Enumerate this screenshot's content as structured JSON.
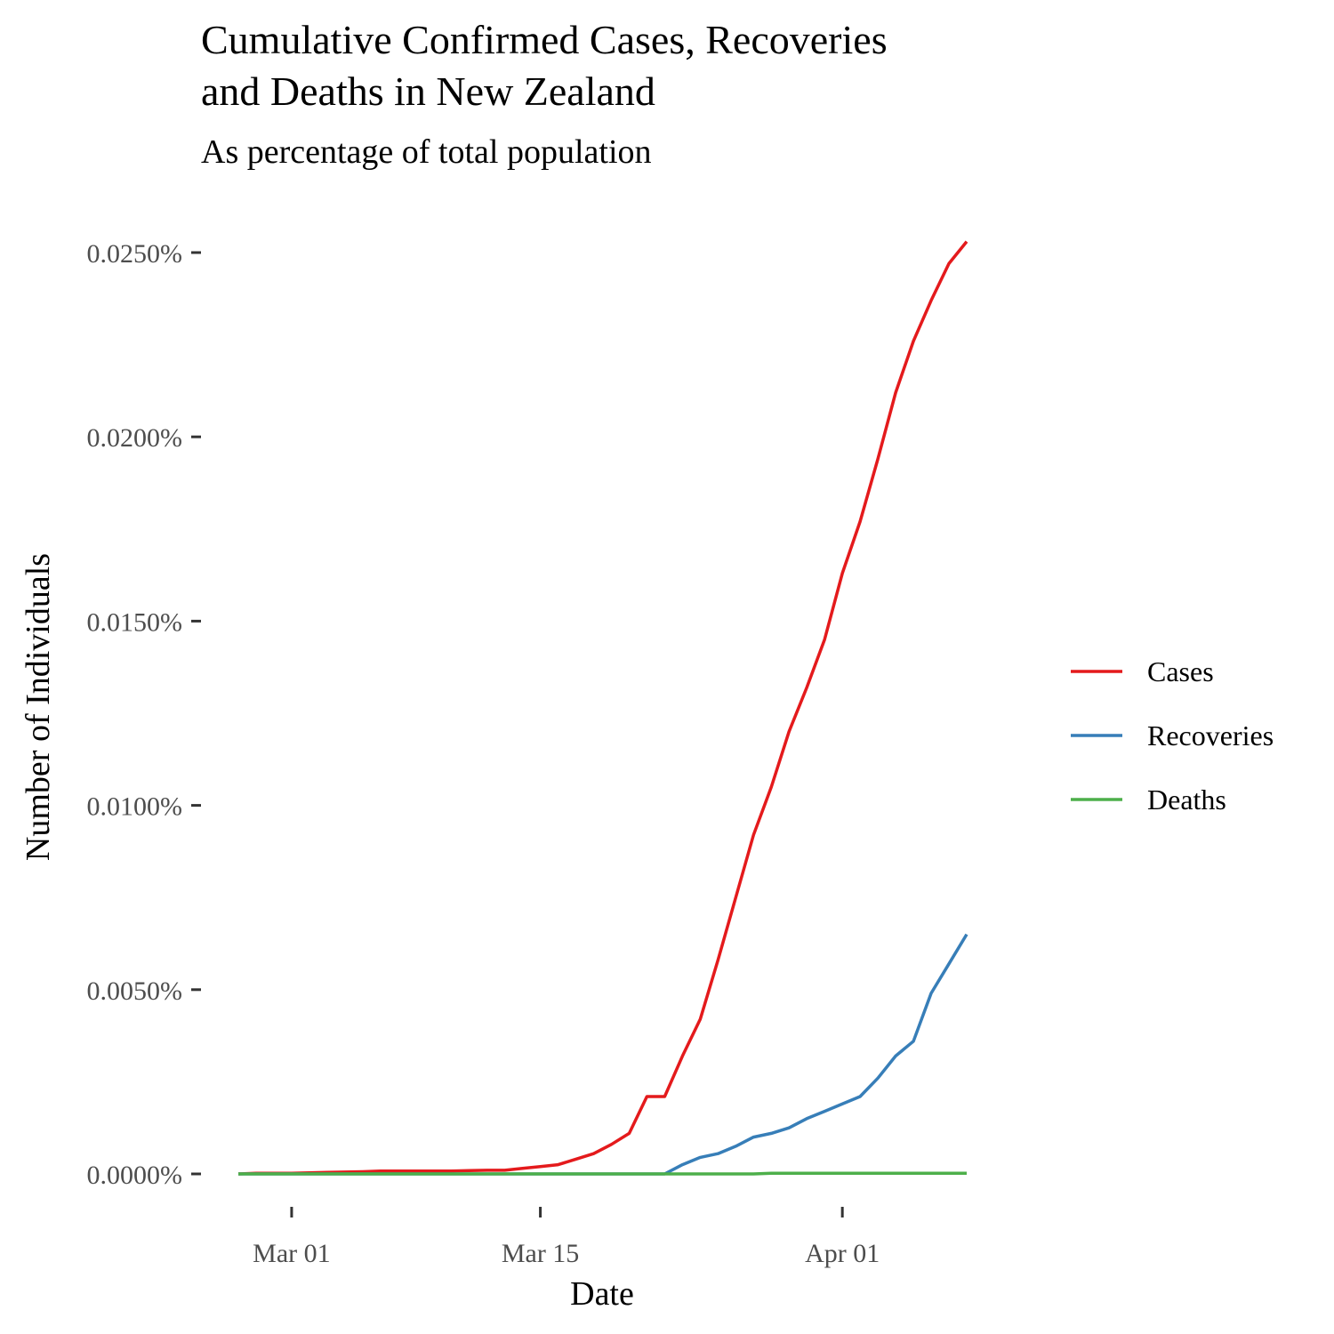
{
  "chart_data": {
    "type": "line",
    "title_lines": [
      "Cumulative Confirmed Cases, Recoveries",
      "and Deaths in New Zealand"
    ],
    "subtitle": "As percentage of total population",
    "xlabel": "Date",
    "ylabel": "Number of Individuals",
    "x_ticks": [
      "Mar 01",
      "Mar 15",
      "Apr 01"
    ],
    "y_ticks": [
      "0.0000%",
      "0.0050%",
      "0.0100%",
      "0.0150%",
      "0.0200%",
      "0.0250%"
    ],
    "ylim": [
      0,
      0.025
    ],
    "xlim": [
      "2020-02-27",
      "2020-04-08"
    ],
    "grid": false,
    "legend_position": "right",
    "x": [
      "2020-02-27",
      "2020-02-28",
      "2020-02-29",
      "2020-03-01",
      "2020-03-02",
      "2020-03-03",
      "2020-03-04",
      "2020-03-05",
      "2020-03-06",
      "2020-03-07",
      "2020-03-08",
      "2020-03-09",
      "2020-03-10",
      "2020-03-11",
      "2020-03-12",
      "2020-03-13",
      "2020-03-14",
      "2020-03-15",
      "2020-03-16",
      "2020-03-17",
      "2020-03-18",
      "2020-03-19",
      "2020-03-20",
      "2020-03-21",
      "2020-03-22",
      "2020-03-23",
      "2020-03-24",
      "2020-03-25",
      "2020-03-26",
      "2020-03-27",
      "2020-03-28",
      "2020-03-29",
      "2020-03-30",
      "2020-03-31",
      "2020-04-01",
      "2020-04-02",
      "2020-04-03",
      "2020-04-04",
      "2020-04-05",
      "2020-04-06",
      "2020-04-07",
      "2020-04-08"
    ],
    "series": [
      {
        "name": "Cases",
        "color": "#E41A1C",
        "values": [
          0,
          2e-05,
          2e-05,
          2e-05,
          3e-05,
          4e-05,
          5e-05,
          6e-05,
          8e-05,
          8e-05,
          8e-05,
          8e-05,
          8e-05,
          9e-05,
          0.0001,
          0.0001,
          0.00015,
          0.0002,
          0.00025,
          0.0004,
          0.00055,
          0.0008,
          0.0011,
          0.0021,
          0.0021,
          0.0032,
          0.0042,
          0.0058,
          0.0075,
          0.0092,
          0.0105,
          0.012,
          0.0132,
          0.0145,
          0.0163,
          0.0177,
          0.0194,
          0.0212,
          0.0226,
          0.0237,
          0.0247,
          0.0253
        ]
      },
      {
        "name": "Recoveries",
        "color": "#377EB8",
        "values": [
          0,
          0,
          0,
          0,
          0,
          0,
          0,
          0,
          0,
          0,
          0,
          0,
          0,
          0,
          0,
          0,
          0,
          0,
          0,
          0,
          0,
          0,
          0,
          0,
          0,
          0.00025,
          0.00045,
          0.00055,
          0.00075,
          0.001,
          0.0011,
          0.00125,
          0.0015,
          0.0017,
          0.0019,
          0.0021,
          0.0026,
          0.0032,
          0.0036,
          0.0049,
          0.0057,
          0.0065
        ]
      },
      {
        "name": "Deaths",
        "color": "#4DAF4A",
        "values": [
          0,
          0,
          0,
          0,
          0,
          0,
          0,
          0,
          0,
          0,
          0,
          0,
          0,
          0,
          0,
          0,
          0,
          0,
          0,
          0,
          0,
          0,
          0,
          0,
          0,
          0,
          0,
          0,
          0,
          0,
          2e-05,
          2e-05,
          2e-05,
          2e-05,
          2e-05,
          2e-05,
          2e-05,
          2e-05,
          2e-05,
          2e-05,
          2e-05,
          2e-05
        ]
      }
    ]
  }
}
